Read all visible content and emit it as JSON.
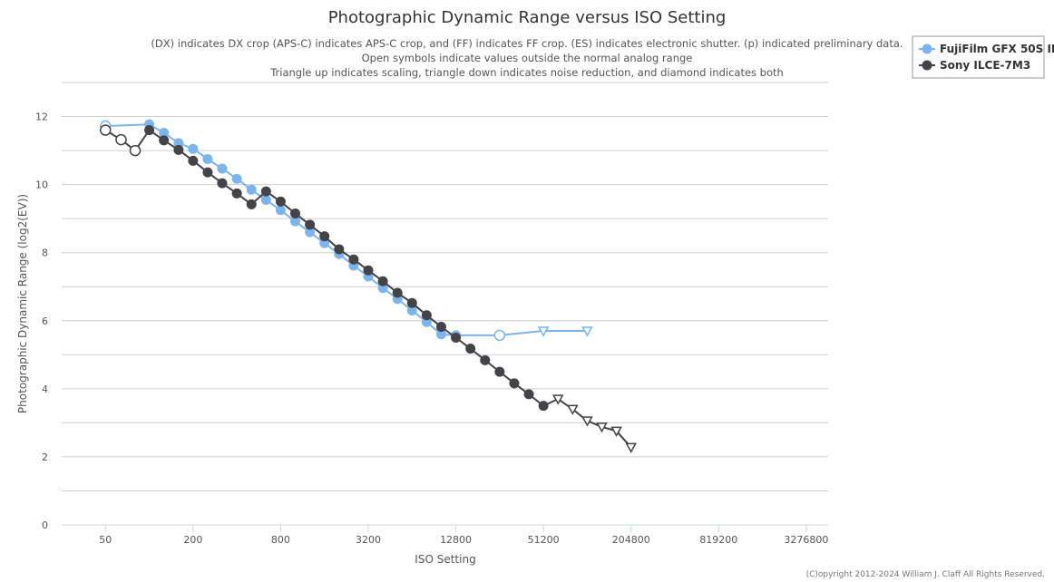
{
  "chart_data": {
    "type": "line",
    "title": "Photographic Dynamic Range versus ISO Setting",
    "subtitle": [
      "(DX) indicates DX crop (APS-C) indicates APS-C crop, and (FF) indicates FF crop. (ES) indicates electronic shutter. (p) indicated preliminary data.",
      "Open symbols indicate values outside the normal analog range",
      "Triangle up indicates scaling, triangle down indicates noise reduction, and diamond indicates both"
    ],
    "xlabel": "ISO Setting",
    "ylabel": "Photographic Dynamic Range (log2(EV))",
    "x_scale": "log",
    "x_ticks": [
      50,
      200,
      800,
      3200,
      12800,
      51200,
      204800,
      819200,
      3276800
    ],
    "x_tick_labels": [
      "50",
      "200",
      "800",
      "3200",
      "12800",
      "51200",
      "204800",
      "819200",
      "3276800"
    ],
    "xlim": [
      25,
      4634000
    ],
    "y_ticks": [
      0,
      2,
      4,
      6,
      8,
      10,
      12
    ],
    "y_tick_labels": [
      "0",
      "2",
      "4",
      "6",
      "8",
      "10",
      "12"
    ],
    "ylim": [
      0,
      13
    ],
    "grid": true,
    "legend_position": "top-right",
    "series": [
      {
        "name": "FujiFilm GFX 50S II",
        "color": "#7cb5ec",
        "points": [
          {
            "x": 50,
            "y": 11.72,
            "marker": "open-circle"
          },
          {
            "x": 100,
            "y": 11.77,
            "marker": "circle"
          },
          {
            "x": 126,
            "y": 11.52,
            "marker": "circle"
          },
          {
            "x": 159,
            "y": 11.22,
            "marker": "circle"
          },
          {
            "x": 200,
            "y": 11.05,
            "marker": "circle"
          },
          {
            "x": 252,
            "y": 10.75,
            "marker": "circle"
          },
          {
            "x": 317,
            "y": 10.47,
            "marker": "circle"
          },
          {
            "x": 400,
            "y": 10.17,
            "marker": "circle"
          },
          {
            "x": 504,
            "y": 9.85,
            "marker": "circle"
          },
          {
            "x": 635,
            "y": 9.55,
            "marker": "circle"
          },
          {
            "x": 800,
            "y": 9.25,
            "marker": "circle"
          },
          {
            "x": 1008,
            "y": 8.92,
            "marker": "circle"
          },
          {
            "x": 1270,
            "y": 8.6,
            "marker": "circle"
          },
          {
            "x": 1600,
            "y": 8.28,
            "marker": "circle"
          },
          {
            "x": 2016,
            "y": 7.96,
            "marker": "circle"
          },
          {
            "x": 2540,
            "y": 7.62,
            "marker": "circle"
          },
          {
            "x": 3200,
            "y": 7.3,
            "marker": "circle"
          },
          {
            "x": 4032,
            "y": 6.96,
            "marker": "circle"
          },
          {
            "x": 5080,
            "y": 6.64,
            "marker": "circle"
          },
          {
            "x": 6400,
            "y": 6.3,
            "marker": "circle"
          },
          {
            "x": 8063,
            "y": 5.96,
            "marker": "circle"
          },
          {
            "x": 10159,
            "y": 5.6,
            "marker": "circle"
          },
          {
            "x": 12800,
            "y": 5.57,
            "marker": "circle"
          },
          {
            "x": 25600,
            "y": 5.57,
            "marker": "open-circle"
          },
          {
            "x": 51200,
            "y": 5.7,
            "marker": "open-triangle-down"
          },
          {
            "x": 102400,
            "y": 5.7,
            "marker": "open-triangle-down"
          }
        ]
      },
      {
        "name": "Sony ILCE-7M3",
        "color": "#434348",
        "points": [
          {
            "x": 50,
            "y": 11.6,
            "marker": "open-circle"
          },
          {
            "x": 64,
            "y": 11.32,
            "marker": "open-circle"
          },
          {
            "x": 80,
            "y": 11.0,
            "marker": "open-circle"
          },
          {
            "x": 100,
            "y": 11.6,
            "marker": "circle"
          },
          {
            "x": 126,
            "y": 11.3,
            "marker": "circle"
          },
          {
            "x": 159,
            "y": 11.02,
            "marker": "circle"
          },
          {
            "x": 200,
            "y": 10.7,
            "marker": "circle"
          },
          {
            "x": 252,
            "y": 10.36,
            "marker": "circle"
          },
          {
            "x": 317,
            "y": 10.04,
            "marker": "circle"
          },
          {
            "x": 400,
            "y": 9.74,
            "marker": "circle"
          },
          {
            "x": 504,
            "y": 9.42,
            "marker": "circle"
          },
          {
            "x": 635,
            "y": 9.8,
            "marker": "circle"
          },
          {
            "x": 800,
            "y": 9.5,
            "marker": "circle"
          },
          {
            "x": 1008,
            "y": 9.15,
            "marker": "circle"
          },
          {
            "x": 1270,
            "y": 8.82,
            "marker": "circle"
          },
          {
            "x": 1600,
            "y": 8.48,
            "marker": "circle"
          },
          {
            "x": 2016,
            "y": 8.1,
            "marker": "circle"
          },
          {
            "x": 2540,
            "y": 7.8,
            "marker": "circle"
          },
          {
            "x": 3200,
            "y": 7.48,
            "marker": "circle"
          },
          {
            "x": 4032,
            "y": 7.16,
            "marker": "circle"
          },
          {
            "x": 5080,
            "y": 6.82,
            "marker": "circle"
          },
          {
            "x": 6400,
            "y": 6.52,
            "marker": "circle"
          },
          {
            "x": 8063,
            "y": 6.16,
            "marker": "circle"
          },
          {
            "x": 10159,
            "y": 5.82,
            "marker": "circle"
          },
          {
            "x": 12800,
            "y": 5.5,
            "marker": "circle"
          },
          {
            "x": 16127,
            "y": 5.18,
            "marker": "circle"
          },
          {
            "x": 20319,
            "y": 4.84,
            "marker": "circle"
          },
          {
            "x": 25600,
            "y": 4.5,
            "marker": "circle"
          },
          {
            "x": 32254,
            "y": 4.16,
            "marker": "circle"
          },
          {
            "x": 40637,
            "y": 3.84,
            "marker": "circle"
          },
          {
            "x": 51200,
            "y": 3.5,
            "marker": "circle"
          },
          {
            "x": 64508,
            "y": 3.7,
            "marker": "open-triangle-down"
          },
          {
            "x": 81275,
            "y": 3.4,
            "marker": "open-triangle-down"
          },
          {
            "x": 102400,
            "y": 3.06,
            "marker": "open-triangle-down"
          },
          {
            "x": 129016,
            "y": 2.88,
            "marker": "open-triangle-down"
          },
          {
            "x": 162550,
            "y": 2.76,
            "marker": "open-triangle-down"
          },
          {
            "x": 204800,
            "y": 2.28,
            "marker": "open-triangle-down"
          }
        ]
      }
    ]
  },
  "credits": "(C)opyright 2012-2024 William J. Claff All Rights Reserved."
}
